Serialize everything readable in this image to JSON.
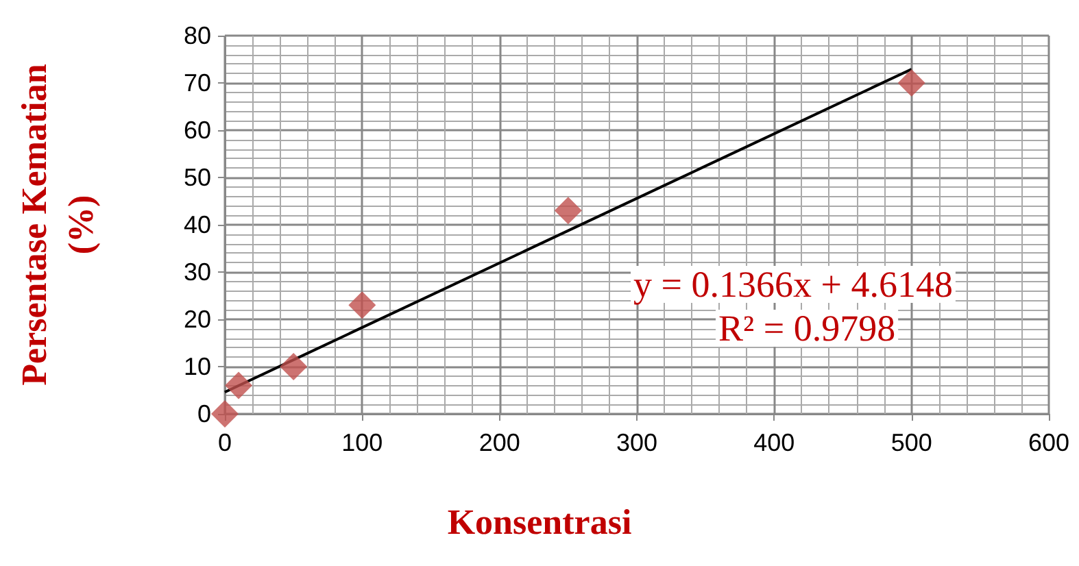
{
  "chart_data": {
    "type": "scatter",
    "xlabel": "Konsentrasi",
    "ylabel": "Persentase Kematian\n(%)",
    "xlim": [
      0,
      600
    ],
    "xticks": [
      0,
      100,
      200,
      300,
      400,
      500,
      600
    ],
    "ylim": [
      0,
      80
    ],
    "yticks": [
      0,
      10,
      20,
      30,
      40,
      50,
      60,
      70,
      80
    ],
    "grid": true,
    "marker": "diamond",
    "series": [
      {
        "color": "#c0504d",
        "x": [
          0,
          10,
          50,
          100,
          250,
          500
        ],
        "values": [
          0,
          6,
          10,
          23,
          43,
          70
        ]
      },
      {
        "type": "line",
        "color": "#000000",
        "x": [
          0,
          500
        ],
        "values": [
          4.6,
          72.9
        ],
        "marker": "none",
        "line_style": "solid"
      }
    ],
    "annotations": [
      "y = 0.1366x + 4.6148",
      "R² = 0.9798"
    ]
  }
}
